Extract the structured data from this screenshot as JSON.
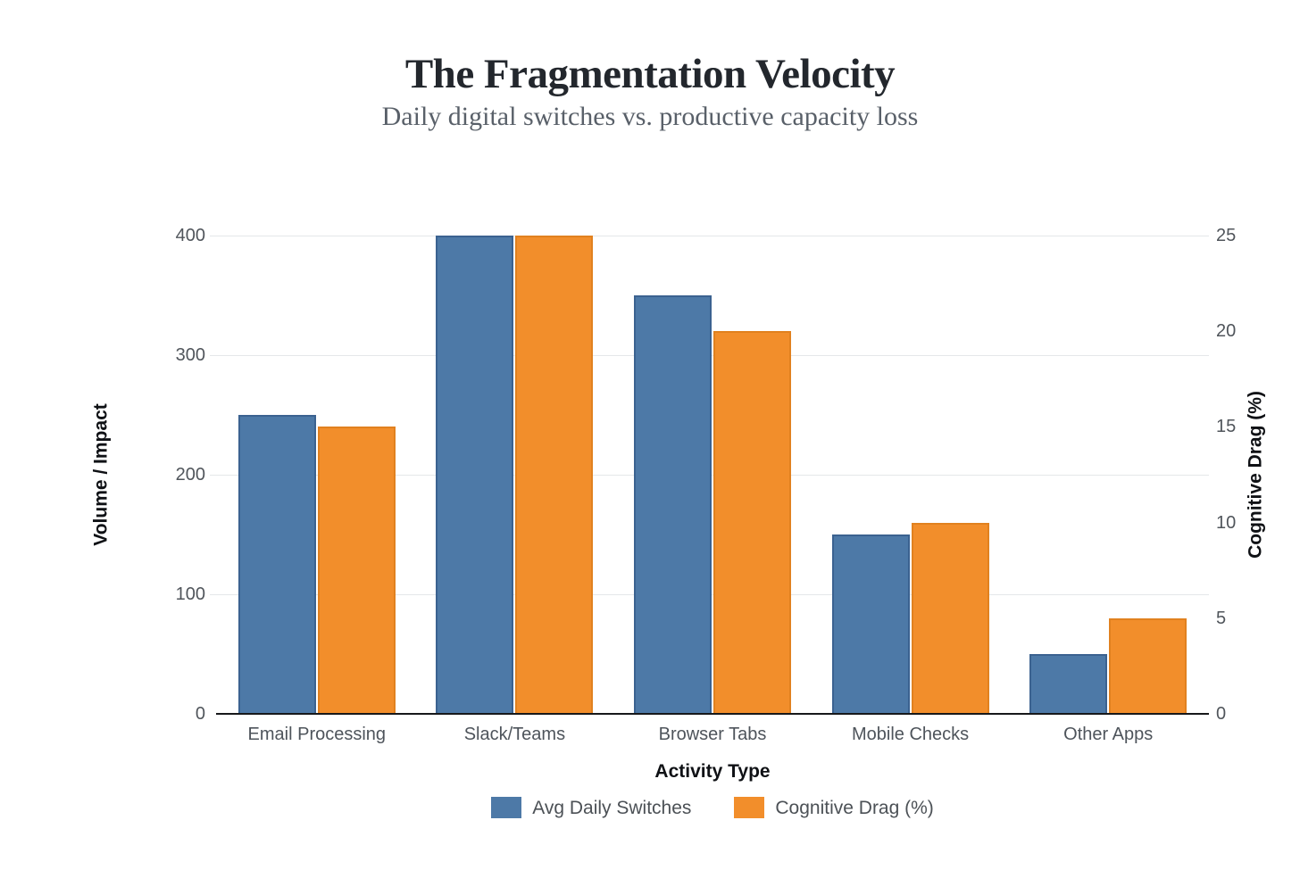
{
  "chart_data": {
    "type": "bar",
    "title": "The Fragmentation Velocity",
    "subtitle": "Daily digital switches vs. productive capacity loss",
    "categories": [
      "Email Processing",
      "Slack/Teams",
      "Browser Tabs",
      "Mobile Checks",
      "Other Apps"
    ],
    "series": [
      {
        "name": "Avg Daily Switches",
        "axis": "left",
        "color": "#4d79a7",
        "border_color": "#3b6290",
        "values": [
          250,
          400,
          350,
          150,
          50
        ]
      },
      {
        "name": "Cognitive Drag (%)",
        "axis": "right",
        "color": "#f28e2b",
        "border_color": "#e1811f",
        "values": [
          15,
          25,
          20,
          10,
          5
        ]
      }
    ],
    "xlabel": "Activity Type",
    "ylabel_left": "Volume / Impact",
    "ylabel_right": "Cognitive Drag (%)",
    "y_left": {
      "min": 0,
      "max": 400,
      "ticks": [
        0,
        100,
        200,
        300,
        400
      ]
    },
    "y_right": {
      "min": 0,
      "max": 25,
      "ticks": [
        0,
        5,
        10,
        15,
        20,
        25
      ]
    },
    "legend": [
      {
        "label": "Avg Daily Switches",
        "color": "#4d79a7"
      },
      {
        "label": "Cognitive Drag (%)",
        "color": "#f28e2b"
      }
    ],
    "legend_position": "bottom",
    "grid": true,
    "colors": {
      "grid": "#e5e7e9",
      "axis_line": "#17181a",
      "tick_label": "#50555b",
      "axis_title": "#0f1115",
      "title": "#23272d",
      "subtitle": "#596069",
      "legend_text": "#4c5156"
    }
  }
}
